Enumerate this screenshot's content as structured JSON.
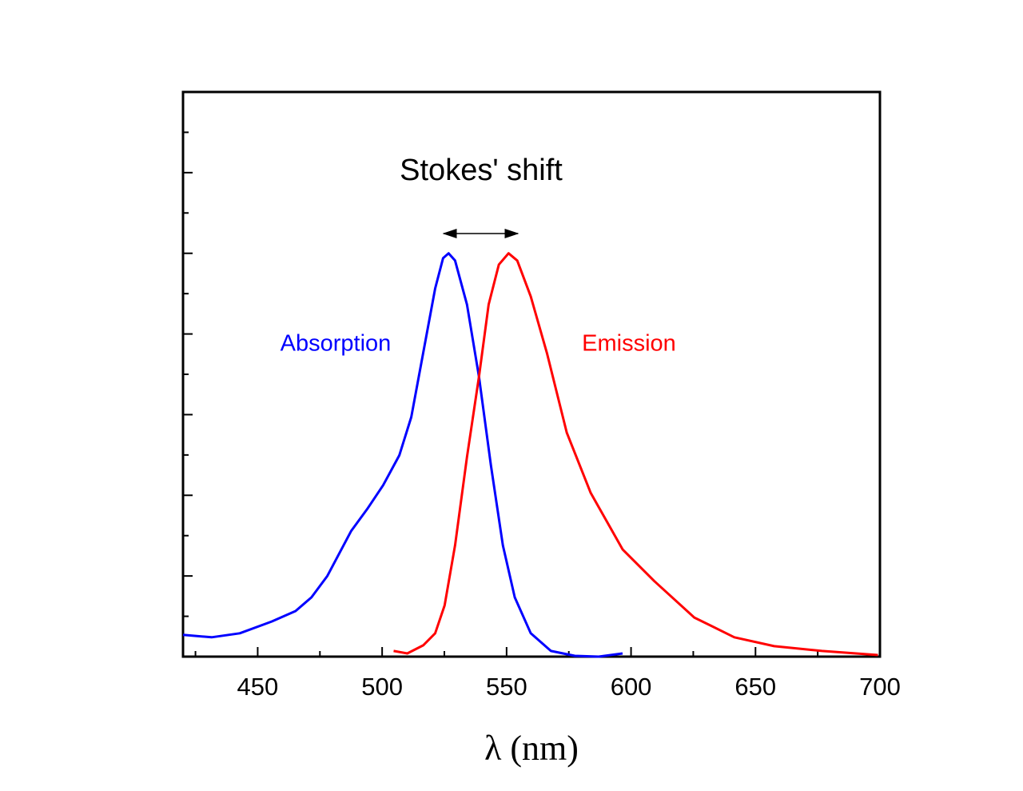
{
  "chart_data": {
    "type": "line",
    "xlabel": "λ (nm)",
    "annotations": [
      "Stokes' shift",
      "Absorption",
      "Emission"
    ],
    "series": [
      {
        "name": "Absorption",
        "color": "#0000ff",
        "x": [
          420,
          431.5,
          442.8,
          455.6,
          465.2,
          471.6,
          478,
          487.6,
          494,
          500.4,
          506.9,
          511.7,
          516.5,
          521.3,
          524.5,
          526.7,
          529.3,
          534.1,
          538.9,
          543.7,
          548.5,
          553.3,
          559.7,
          567.8,
          577.4,
          587,
          596.6
        ],
        "values": [
          0.054,
          0.048,
          0.058,
          0.087,
          0.113,
          0.147,
          0.2,
          0.312,
          0.366,
          0.425,
          0.499,
          0.594,
          0.753,
          0.913,
          0.988,
          1.0,
          0.982,
          0.873,
          0.694,
          0.475,
          0.276,
          0.147,
          0.058,
          0.014,
          0.002,
          0,
          0.008
        ]
      },
      {
        "name": "Emission",
        "color": "#ff0000",
        "x": [
          504.6,
          510.1,
          516.5,
          521.3,
          525.1,
          529.3,
          534.1,
          538.9,
          542.8,
          546.9,
          550.8,
          554.3,
          559.7,
          566.2,
          574.2,
          583.8,
          596.6,
          609.4,
          625.4,
          641.5,
          657.5,
          676.7,
          699.2
        ],
        "values": [
          0.014,
          0.008,
          0.028,
          0.058,
          0.127,
          0.276,
          0.495,
          0.694,
          0.873,
          0.972,
          1.0,
          0.982,
          0.893,
          0.753,
          0.555,
          0.406,
          0.266,
          0.187,
          0.097,
          0.048,
          0.026,
          0.014,
          0.004
        ]
      }
    ],
    "xlim": [
      420,
      700
    ],
    "xticks": [
      450,
      500,
      550,
      600,
      650,
      700
    ],
    "xminorticks": [
      425,
      475,
      525,
      575,
      625,
      675
    ],
    "ylim": [
      0,
      1.4
    ],
    "yticks": [
      0,
      0.2,
      0.4,
      0.6,
      0.8,
      1.0,
      1.2
    ],
    "yminorticks": [
      0.1,
      0.3,
      0.5,
      0.7,
      0.9,
      1.1,
      1.3
    ]
  }
}
